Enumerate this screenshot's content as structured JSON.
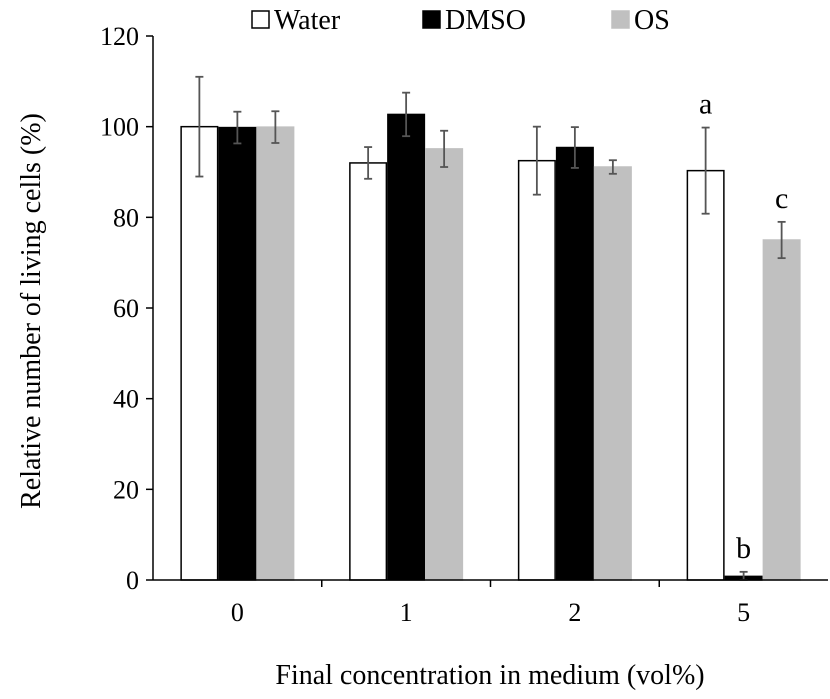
{
  "chart_data": {
    "type": "bar",
    "categories": [
      "0",
      "1",
      "2",
      "5"
    ],
    "series": [
      {
        "name": "Water",
        "values": [
          100,
          92,
          92.5,
          90.3
        ],
        "errors": [
          11,
          3.5,
          7.5,
          9.5
        ],
        "color": "#ffffff",
        "stroke": "#000000"
      },
      {
        "name": "DMSO",
        "values": [
          99.8,
          102.7,
          95.4,
          0.8
        ],
        "errors": [
          3.5,
          4.8,
          4.5,
          1.0
        ],
        "color": "#000000",
        "stroke": "#000000"
      },
      {
        "name": "OS",
        "values": [
          99.9,
          95.1,
          91.1,
          75.0
        ],
        "errors": [
          3.5,
          4.0,
          1.5,
          4.0
        ],
        "color": "#c0c0c0",
        "stroke": "#c0c0c0"
      }
    ],
    "annotations": [
      {
        "category": "5",
        "series": "Water",
        "text": "a"
      },
      {
        "category": "5",
        "series": "DMSO",
        "text": "b"
      },
      {
        "category": "5",
        "series": "OS",
        "text": "c"
      }
    ],
    "xlabel": "Final concentration  in medium (vol%)",
    "ylabel": "Relative number of living cells (%)",
    "ylim": [
      0,
      120
    ],
    "yticks": [
      "0",
      "20",
      "40",
      "60",
      "80",
      "100",
      "120"
    ],
    "legend_position": "top",
    "grid": false
  }
}
